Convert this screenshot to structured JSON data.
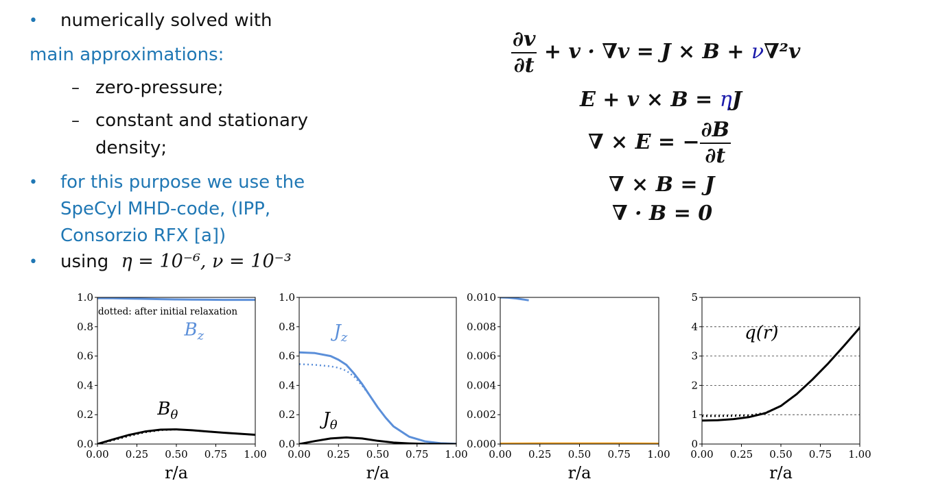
{
  "bullets": {
    "b1": "numerically solved with",
    "approx_heading": "main approximations:",
    "sub1": "zero-pressure;",
    "sub2a": "constant and stationary",
    "sub2b": "density;",
    "b3a": "for this purpose we use the",
    "b3b": "SpeCyl MHD-code, (IPP,",
    "b3c": "Consorzio RFX [a])",
    "b4_prefix": "using",
    "b4_math": "η = 10⁻⁶, ν = 10⁻³"
  },
  "equations": {
    "e1_num": "∂v",
    "e1_den": "∂t",
    "e1_mid": "+ v · ∇v = J × B + ",
    "e1_nu": "ν",
    "e1_end": "∇²v",
    "e2_a": "E + v × B = ",
    "e2_eta": "η",
    "e2_b": "J",
    "e3_a": "∇ × E = −",
    "e3_num": "∂B",
    "e3_den": "∂t",
    "e4": "∇ × B = J",
    "e5": "∇ · B = 0"
  },
  "colors": {
    "blue_line": "#5b8fd9",
    "black_line": "#000000",
    "orange_line": "#f0a020",
    "text_blue": "#1f77b4"
  },
  "chart_data": [
    {
      "type": "line",
      "xlabel": "r/a",
      "ylim": [
        0,
        1.0
      ],
      "xticks": [
        "0.00",
        "0.25",
        "0.50",
        "0.75",
        "1.00"
      ],
      "yticks": [
        "0.0",
        "0.2",
        "0.4",
        "0.6",
        "0.8",
        "1.0"
      ],
      "annotation": "dotted: after initial relaxation",
      "series": [
        {
          "name": "B_z",
          "color": "#5b8fd9",
          "style": "solid",
          "x": [
            0,
            0.1,
            0.2,
            0.3,
            0.4,
            0.5,
            0.6,
            0.7,
            0.8,
            0.9,
            1.0
          ],
          "y": [
            0.995,
            0.994,
            0.992,
            0.99,
            0.988,
            0.986,
            0.985,
            0.984,
            0.983,
            0.983,
            0.983
          ]
        },
        {
          "name": "B_θ",
          "color": "#000000",
          "style": "solid",
          "x": [
            0,
            0.1,
            0.2,
            0.3,
            0.4,
            0.5,
            0.6,
            0.7,
            0.8,
            0.9,
            1.0
          ],
          "y": [
            0,
            0.032,
            0.062,
            0.085,
            0.098,
            0.1,
            0.094,
            0.085,
            0.077,
            0.07,
            0.063
          ]
        },
        {
          "name": "",
          "color": "#000000",
          "style": "dotted",
          "x": [
            0,
            0.1,
            0.2,
            0.3,
            0.4,
            0.5,
            0.6,
            0.7,
            0.8,
            0.9,
            1.0
          ],
          "y": [
            0,
            0.026,
            0.055,
            0.08,
            0.095,
            0.099,
            0.094,
            0.085,
            0.077,
            0.07,
            0.063
          ]
        }
      ],
      "labels": [
        {
          "text": "B",
          "sub": "z",
          "color": "#5b8fd9",
          "x": 0.55,
          "y": 0.74
        },
        {
          "text": "B",
          "sub": "θ",
          "color": "#000000",
          "x": 0.38,
          "y": 0.2
        }
      ]
    },
    {
      "type": "line",
      "xlabel": "r/a",
      "ylim": [
        0,
        1.0
      ],
      "xticks": [
        "0.00",
        "0.25",
        "0.50",
        "0.75",
        "1.00"
      ],
      "yticks": [
        "0.0",
        "0.2",
        "0.4",
        "0.6",
        "0.8",
        "1.0"
      ],
      "series": [
        {
          "name": "J_z",
          "color": "#5b8fd9",
          "style": "solid",
          "x": [
            0,
            0.1,
            0.2,
            0.25,
            0.3,
            0.35,
            0.4,
            0.45,
            0.5,
            0.55,
            0.6,
            0.7,
            0.8,
            0.9,
            1.0
          ],
          "y": [
            0.625,
            0.62,
            0.6,
            0.575,
            0.54,
            0.48,
            0.41,
            0.33,
            0.25,
            0.18,
            0.12,
            0.05,
            0.018,
            0.005,
            0.001
          ]
        },
        {
          "name": "",
          "color": "#5b8fd9",
          "style": "dotted",
          "x": [
            0,
            0.1,
            0.2,
            0.25,
            0.3,
            0.35,
            0.4,
            0.45,
            0.5,
            0.55,
            0.6,
            0.7,
            0.8,
            0.9,
            1.0
          ],
          "y": [
            0.545,
            0.54,
            0.53,
            0.52,
            0.5,
            0.46,
            0.4,
            0.33,
            0.25,
            0.18,
            0.12,
            0.05,
            0.018,
            0.005,
            0.001
          ]
        },
        {
          "name": "J_θ",
          "color": "#000000",
          "style": "solid",
          "x": [
            0,
            0.1,
            0.2,
            0.3,
            0.4,
            0.5,
            0.6,
            0.7,
            0.8,
            1.0
          ],
          "y": [
            0,
            0.02,
            0.038,
            0.045,
            0.038,
            0.022,
            0.01,
            0.004,
            0.001,
            0
          ]
        }
      ],
      "labels": [
        {
          "text": "J",
          "sub": "z",
          "color": "#5b8fd9",
          "x": 0.22,
          "y": 0.73
        },
        {
          "text": "J",
          "sub": "θ",
          "color": "#000000",
          "x": 0.15,
          "y": 0.13
        }
      ]
    },
    {
      "type": "line",
      "xlabel": "r/a",
      "ylim": [
        0,
        0.01
      ],
      "xticks": [
        "0.00",
        "0.25",
        "0.50",
        "0.75",
        "1.00"
      ],
      "yticks": [
        "0.000",
        "0.002",
        "0.004",
        "0.006",
        "0.008",
        "0.010"
      ],
      "series": [
        {
          "name": "",
          "color": "#5b8fd9",
          "style": "solid",
          "x": [
            0,
            0.05,
            0.1,
            0.15,
            0.18
          ],
          "y": [
            0.01,
            0.00998,
            0.00993,
            0.00985,
            0.0098
          ]
        },
        {
          "name": "",
          "color": "#f0a020",
          "style": "solid",
          "x": [
            0,
            0.25,
            0.5,
            0.75,
            1.0
          ],
          "y": [
            3e-05,
            4e-05,
            4e-05,
            4e-05,
            3e-05
          ]
        }
      ],
      "labels": []
    },
    {
      "type": "line",
      "xlabel": "r/a",
      "ylim": [
        0,
        5
      ],
      "xticks": [
        "0.00",
        "0.25",
        "0.50",
        "0.75",
        "1.00"
      ],
      "yticks": [
        "0",
        "1",
        "2",
        "3",
        "4",
        "5"
      ],
      "grid": "horizontal dashed",
      "series": [
        {
          "name": "q(r)",
          "color": "#000000",
          "style": "solid",
          "x": [
            0,
            0.1,
            0.2,
            0.3,
            0.4,
            0.5,
            0.6,
            0.7,
            0.8,
            0.9,
            1.0
          ],
          "y": [
            0.8,
            0.81,
            0.85,
            0.92,
            1.05,
            1.3,
            1.7,
            2.2,
            2.75,
            3.35,
            3.97
          ]
        },
        {
          "name": "",
          "color": "#000000",
          "style": "dotted",
          "x": [
            0,
            0.1,
            0.2,
            0.3,
            0.4,
            0.5,
            0.6,
            0.7,
            0.8,
            0.9,
            1.0
          ],
          "y": [
            0.95,
            0.95,
            0.96,
            0.98,
            1.06,
            1.3,
            1.7,
            2.2,
            2.75,
            3.35,
            3.97
          ]
        }
      ],
      "labels": [
        {
          "text": "q(r)",
          "sub": "",
          "color": "#000000",
          "x": 0.27,
          "y": 3.6
        }
      ]
    }
  ]
}
